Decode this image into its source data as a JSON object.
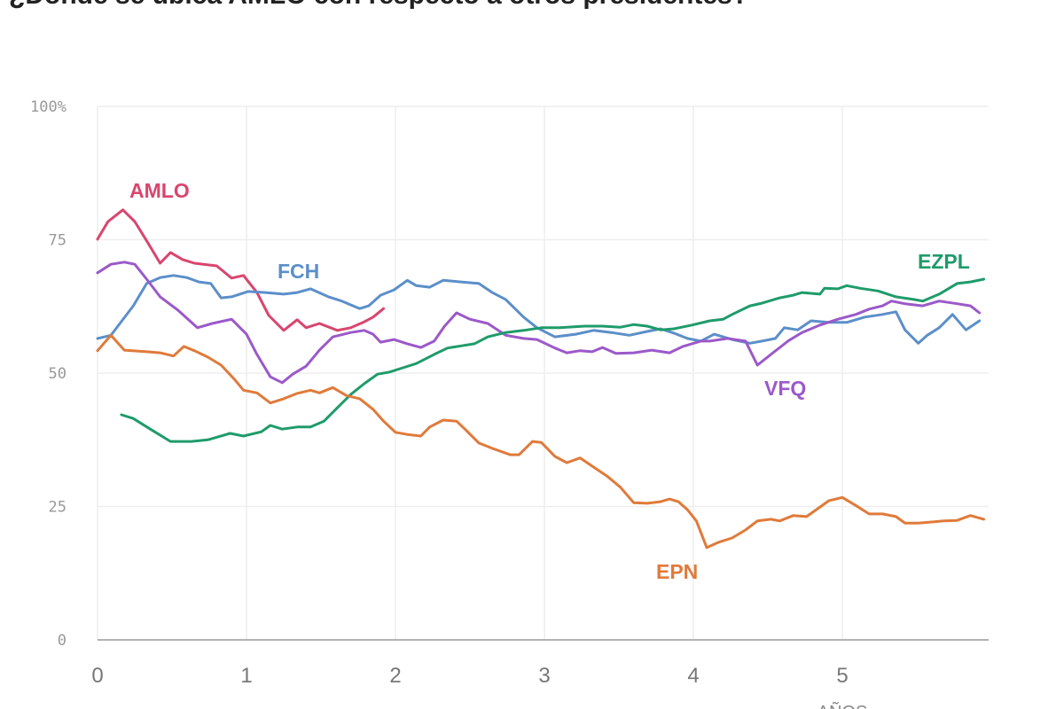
{
  "chart_data": {
    "type": "line",
    "title": "¿Dónde se ubica AMLO con respecto a otros presidentes?",
    "xlabel": "AÑOS",
    "ylabel": "",
    "xlim": [
      0,
      6
    ],
    "ylim": [
      0,
      100
    ],
    "xticks": [
      "0",
      "1",
      "2",
      "3",
      "4",
      "5"
    ],
    "yticks": [
      "100%",
      "75",
      "50",
      "25",
      "0"
    ],
    "grid": true,
    "legend": "inline labels",
    "series": [
      {
        "name": "AMLO",
        "color": "#d9456e",
        "points": [
          [
            0,
            75.1
          ],
          [
            0.07,
            78.4
          ],
          [
            0.17,
            80.6
          ],
          [
            0.25,
            78.4
          ],
          [
            0.33,
            74.8
          ],
          [
            0.42,
            70.6
          ],
          [
            0.49,
            72.6
          ],
          [
            0.57,
            71.3
          ],
          [
            0.65,
            70.6
          ],
          [
            0.8,
            70.1
          ],
          [
            0.9,
            67.8
          ],
          [
            0.98,
            68.3
          ],
          [
            1.07,
            65.1
          ],
          [
            1.15,
            60.8
          ],
          [
            1.25,
            58.0
          ],
          [
            1.34,
            60.0
          ],
          [
            1.4,
            58.5
          ],
          [
            1.49,
            59.3
          ],
          [
            1.61,
            58.0
          ],
          [
            1.7,
            58.5
          ],
          [
            1.79,
            59.6
          ],
          [
            1.85,
            60.5
          ],
          [
            1.92,
            62.1
          ]
        ]
      },
      {
        "name": "FCH",
        "color": "#5b8fc9",
        "points": [
          [
            0,
            56.5
          ],
          [
            0.09,
            57.1
          ],
          [
            0.24,
            62.6
          ],
          [
            0.33,
            66.8
          ],
          [
            0.42,
            67.9
          ],
          [
            0.51,
            68.3
          ],
          [
            0.6,
            67.9
          ],
          [
            0.68,
            67.1
          ],
          [
            0.76,
            66.8
          ],
          [
            0.83,
            64.1
          ],
          [
            0.9,
            64.3
          ],
          [
            1.01,
            65.3
          ],
          [
            1.13,
            65.1
          ],
          [
            1.25,
            64.8
          ],
          [
            1.34,
            65.1
          ],
          [
            1.43,
            65.8
          ],
          [
            1.55,
            64.3
          ],
          [
            1.64,
            63.5
          ],
          [
            1.76,
            62.1
          ],
          [
            1.82,
            62.6
          ],
          [
            1.9,
            64.6
          ],
          [
            1.99,
            65.6
          ],
          [
            2.08,
            67.4
          ],
          [
            2.14,
            66.4
          ],
          [
            2.23,
            66.1
          ],
          [
            2.32,
            67.4
          ],
          [
            2.44,
            67.1
          ],
          [
            2.56,
            66.8
          ],
          [
            2.65,
            65.1
          ],
          [
            2.74,
            63.8
          ],
          [
            2.86,
            60.5
          ],
          [
            2.95,
            58.5
          ],
          [
            3.07,
            56.8
          ],
          [
            3.21,
            57.3
          ],
          [
            3.33,
            58.0
          ],
          [
            3.45,
            57.6
          ],
          [
            3.57,
            57.1
          ],
          [
            3.69,
            57.8
          ],
          [
            3.78,
            58.3
          ],
          [
            3.87,
            57.5
          ],
          [
            3.96,
            56.5
          ],
          [
            4.05,
            56.0
          ],
          [
            4.14,
            57.3
          ],
          [
            4.26,
            56.3
          ],
          [
            4.38,
            55.6
          ],
          [
            4.46,
            56.0
          ],
          [
            4.55,
            56.5
          ],
          [
            4.61,
            58.5
          ],
          [
            4.7,
            58.1
          ],
          [
            4.79,
            59.8
          ],
          [
            4.91,
            59.5
          ],
          [
            5.03,
            59.5
          ],
          [
            5.15,
            60.5
          ],
          [
            5.27,
            61.0
          ],
          [
            5.36,
            61.5
          ],
          [
            5.42,
            58.1
          ],
          [
            5.51,
            55.6
          ],
          [
            5.57,
            57.1
          ],
          [
            5.65,
            58.5
          ],
          [
            5.74,
            61.0
          ],
          [
            5.83,
            58.1
          ],
          [
            5.92,
            59.8
          ]
        ]
      },
      {
        "name": "VFQ",
        "color": "#9b59c9",
        "points": [
          [
            0,
            68.8
          ],
          [
            0.09,
            70.4
          ],
          [
            0.18,
            70.8
          ],
          [
            0.25,
            70.4
          ],
          [
            0.33,
            67.6
          ],
          [
            0.42,
            64.3
          ],
          [
            0.54,
            61.8
          ],
          [
            0.67,
            58.5
          ],
          [
            0.77,
            59.3
          ],
          [
            0.9,
            60.1
          ],
          [
            1.0,
            57.3
          ],
          [
            1.07,
            53.5
          ],
          [
            1.16,
            49.3
          ],
          [
            1.24,
            48.2
          ],
          [
            1.31,
            49.8
          ],
          [
            1.4,
            51.3
          ],
          [
            1.49,
            54.3
          ],
          [
            1.58,
            56.8
          ],
          [
            1.7,
            57.6
          ],
          [
            1.79,
            58.0
          ],
          [
            1.85,
            57.3
          ],
          [
            1.9,
            55.8
          ],
          [
            1.99,
            56.3
          ],
          [
            2.08,
            55.5
          ],
          [
            2.17,
            54.8
          ],
          [
            2.26,
            56.0
          ],
          [
            2.33,
            58.8
          ],
          [
            2.41,
            61.3
          ],
          [
            2.5,
            60.1
          ],
          [
            2.62,
            59.3
          ],
          [
            2.74,
            57.1
          ],
          [
            2.86,
            56.5
          ],
          [
            2.95,
            56.3
          ],
          [
            3.07,
            54.7
          ],
          [
            3.15,
            53.8
          ],
          [
            3.24,
            54.2
          ],
          [
            3.32,
            54.0
          ],
          [
            3.39,
            54.8
          ],
          [
            3.48,
            53.7
          ],
          [
            3.6,
            53.8
          ],
          [
            3.72,
            54.3
          ],
          [
            3.84,
            53.8
          ],
          [
            3.93,
            55.0
          ],
          [
            4.05,
            56.0
          ],
          [
            4.11,
            56.0
          ],
          [
            4.23,
            56.5
          ],
          [
            4.35,
            56.0
          ],
          [
            4.43,
            51.5
          ],
          [
            4.52,
            53.5
          ],
          [
            4.64,
            56.1
          ],
          [
            4.73,
            57.6
          ],
          [
            4.85,
            59.0
          ],
          [
            4.97,
            60.1
          ],
          [
            5.09,
            61.0
          ],
          [
            5.18,
            62.0
          ],
          [
            5.27,
            62.6
          ],
          [
            5.33,
            63.5
          ],
          [
            5.42,
            63.0
          ],
          [
            5.54,
            62.6
          ],
          [
            5.65,
            63.5
          ],
          [
            5.77,
            63.0
          ],
          [
            5.86,
            62.6
          ],
          [
            5.92,
            61.3
          ]
        ]
      },
      {
        "name": "EZPL",
        "color": "#1f9b6b",
        "points": [
          [
            0.16,
            42.2
          ],
          [
            0.24,
            41.5
          ],
          [
            0.36,
            39.4
          ],
          [
            0.49,
            37.2
          ],
          [
            0.63,
            37.2
          ],
          [
            0.74,
            37.5
          ],
          [
            0.89,
            38.7
          ],
          [
            0.98,
            38.2
          ],
          [
            1.1,
            39.0
          ],
          [
            1.16,
            40.2
          ],
          [
            1.24,
            39.5
          ],
          [
            1.34,
            39.9
          ],
          [
            1.43,
            39.9
          ],
          [
            1.52,
            41.0
          ],
          [
            1.61,
            43.5
          ],
          [
            1.7,
            46.0
          ],
          [
            1.79,
            48.0
          ],
          [
            1.88,
            49.8
          ],
          [
            1.96,
            50.2
          ],
          [
            2.05,
            51.0
          ],
          [
            2.14,
            51.8
          ],
          [
            2.26,
            53.5
          ],
          [
            2.35,
            54.7
          ],
          [
            2.44,
            55.1
          ],
          [
            2.53,
            55.5
          ],
          [
            2.62,
            56.8
          ],
          [
            2.74,
            57.6
          ],
          [
            2.86,
            58.0
          ],
          [
            2.98,
            58.5
          ],
          [
            3.1,
            58.5
          ],
          [
            3.27,
            58.8
          ],
          [
            3.39,
            58.8
          ],
          [
            3.51,
            58.6
          ],
          [
            3.6,
            59.1
          ],
          [
            3.69,
            58.8
          ],
          [
            3.78,
            58.1
          ],
          [
            3.87,
            58.3
          ],
          [
            3.99,
            59.0
          ],
          [
            4.11,
            59.8
          ],
          [
            4.2,
            60.1
          ],
          [
            4.26,
            61.0
          ],
          [
            4.38,
            62.6
          ],
          [
            4.46,
            63.1
          ],
          [
            4.58,
            64.1
          ],
          [
            4.67,
            64.6
          ],
          [
            4.73,
            65.1
          ],
          [
            4.85,
            64.8
          ],
          [
            4.88,
            65.9
          ],
          [
            4.97,
            65.8
          ],
          [
            5.03,
            66.4
          ],
          [
            5.12,
            65.9
          ],
          [
            5.24,
            65.4
          ],
          [
            5.36,
            64.3
          ],
          [
            5.48,
            63.8
          ],
          [
            5.54,
            63.5
          ],
          [
            5.65,
            64.8
          ],
          [
            5.77,
            66.8
          ],
          [
            5.86,
            67.1
          ],
          [
            5.95,
            67.6
          ]
        ]
      },
      {
        "name": "EPN",
        "color": "#e07a3a",
        "points": [
          [
            0,
            54.2
          ],
          [
            0.09,
            57.1
          ],
          [
            0.18,
            54.3
          ],
          [
            0.33,
            54.0
          ],
          [
            0.42,
            53.8
          ],
          [
            0.51,
            53.2
          ],
          [
            0.58,
            55.0
          ],
          [
            0.65,
            54.2
          ],
          [
            0.74,
            53.0
          ],
          [
            0.83,
            51.5
          ],
          [
            0.92,
            48.8
          ],
          [
            0.98,
            46.8
          ],
          [
            1.07,
            46.3
          ],
          [
            1.16,
            44.4
          ],
          [
            1.25,
            45.2
          ],
          [
            1.34,
            46.2
          ],
          [
            1.43,
            46.8
          ],
          [
            1.49,
            46.3
          ],
          [
            1.58,
            47.3
          ],
          [
            1.67,
            45.8
          ],
          [
            1.76,
            45.2
          ],
          [
            1.85,
            43.2
          ],
          [
            1.92,
            41.0
          ],
          [
            2.0,
            38.9
          ],
          [
            2.08,
            38.5
          ],
          [
            2.17,
            38.2
          ],
          [
            2.23,
            39.9
          ],
          [
            2.32,
            41.2
          ],
          [
            2.41,
            41.0
          ],
          [
            2.47,
            39.4
          ],
          [
            2.56,
            36.9
          ],
          [
            2.65,
            35.9
          ],
          [
            2.77,
            34.7
          ],
          [
            2.83,
            34.7
          ],
          [
            2.92,
            37.2
          ],
          [
            2.98,
            37.0
          ],
          [
            3.07,
            34.4
          ],
          [
            3.15,
            33.2
          ],
          [
            3.24,
            34.1
          ],
          [
            3.33,
            32.4
          ],
          [
            3.42,
            30.7
          ],
          [
            3.51,
            28.6
          ],
          [
            3.6,
            25.7
          ],
          [
            3.69,
            25.6
          ],
          [
            3.78,
            25.9
          ],
          [
            3.84,
            26.4
          ],
          [
            3.9,
            25.9
          ],
          [
            3.96,
            24.4
          ],
          [
            4.02,
            22.3
          ],
          [
            4.09,
            17.3
          ],
          [
            4.17,
            18.3
          ],
          [
            4.26,
            19.1
          ],
          [
            4.35,
            20.6
          ],
          [
            4.43,
            22.3
          ],
          [
            4.52,
            22.6
          ],
          [
            4.58,
            22.3
          ],
          [
            4.67,
            23.3
          ],
          [
            4.76,
            23.1
          ],
          [
            4.85,
            24.9
          ],
          [
            4.91,
            26.1
          ],
          [
            5.0,
            26.7
          ],
          [
            5.09,
            25.2
          ],
          [
            5.18,
            23.6
          ],
          [
            5.27,
            23.6
          ],
          [
            5.36,
            23.1
          ],
          [
            5.42,
            21.9
          ],
          [
            5.51,
            21.9
          ],
          [
            5.6,
            22.1
          ],
          [
            5.68,
            22.3
          ],
          [
            5.77,
            22.4
          ],
          [
            5.86,
            23.3
          ],
          [
            5.95,
            22.6
          ]
        ]
      }
    ]
  }
}
